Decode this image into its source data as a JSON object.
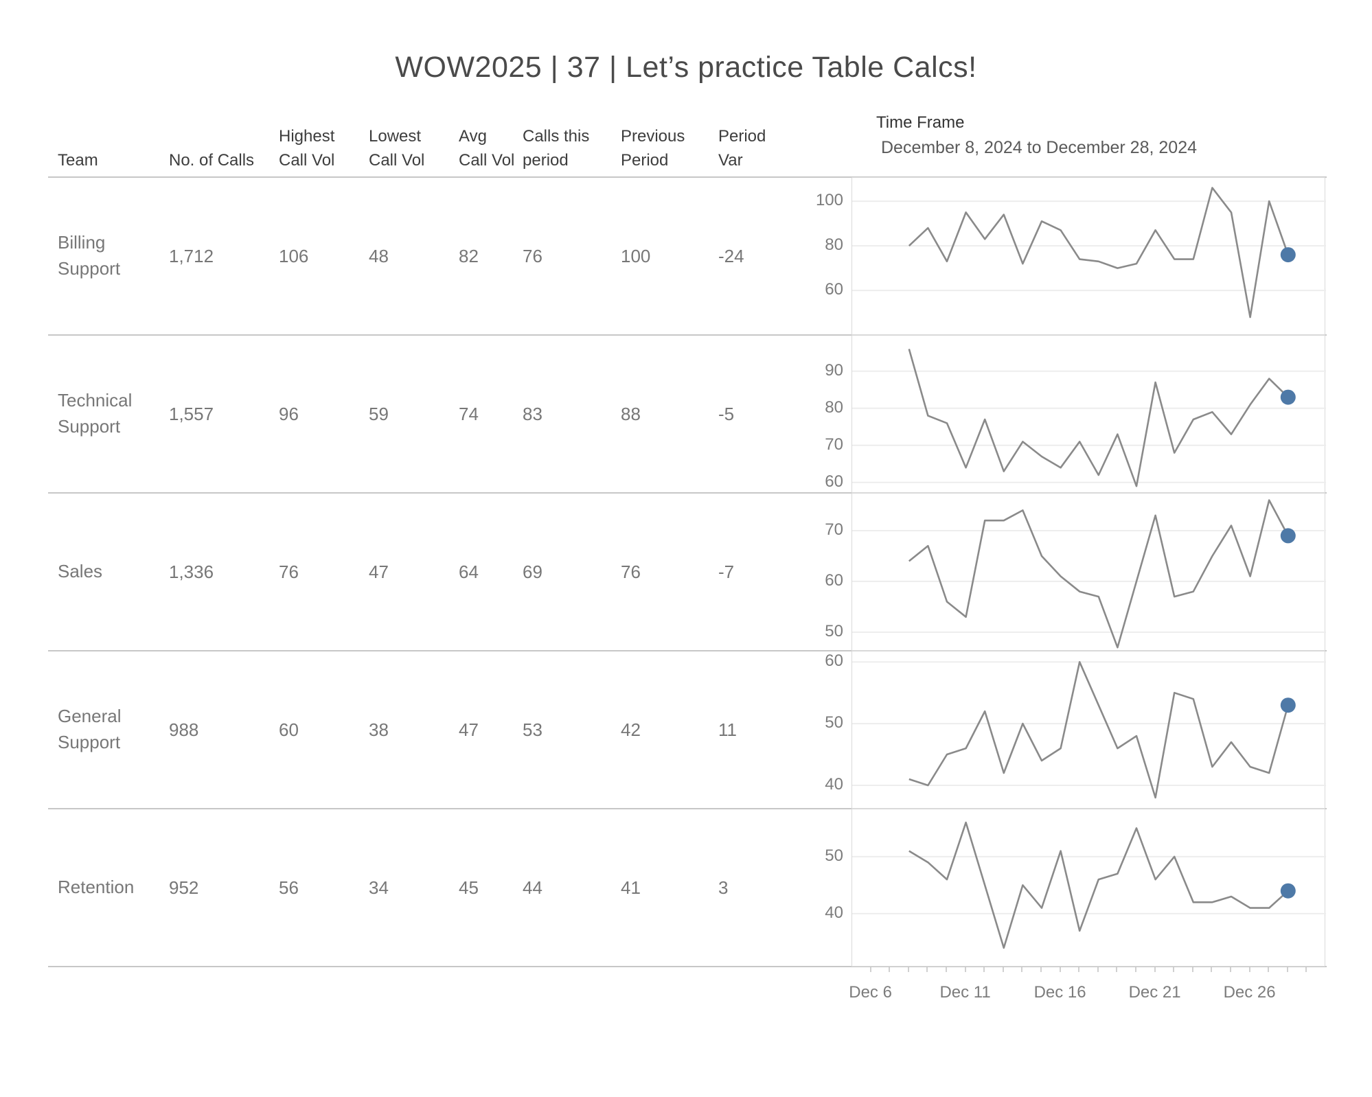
{
  "title": "WOW2025 | 37 | Let’s practice Table Calcs!",
  "time_frame": {
    "label": "Time Frame",
    "range": "December 8, 2024 to December 28, 2024"
  },
  "colors": {
    "line": "#8a8a8a",
    "current_dot": "#4e79a7",
    "gridline": "#ededed",
    "panel_border": "#d9d9d9",
    "separator": "#c7c7c7",
    "value_text": "#777777",
    "header_text": "#3d3d3d",
    "axis_text": "#7c7c7c"
  },
  "table": {
    "columns": [
      {
        "label": "Team"
      },
      {
        "label": "No. of Calls"
      },
      {
        "label": "Highest\nCall Vol"
      },
      {
        "label": "Lowest\nCall Vol"
      },
      {
        "label": "Avg\nCall Vol"
      },
      {
        "label": "Calls this\nperiod"
      },
      {
        "label": "Previous\nPeriod"
      },
      {
        "label": "Period\nVar"
      }
    ],
    "rows": [
      {
        "team": "Billing Support",
        "no_of_calls": "1,712",
        "highest": "106",
        "lowest": "48",
        "avg": "82",
        "calls_this_period": "76",
        "previous_period": "100",
        "period_var": "-24"
      },
      {
        "team": "Technical Support",
        "no_of_calls": "1,557",
        "highest": "96",
        "lowest": "59",
        "avg": "74",
        "calls_this_period": "83",
        "previous_period": "88",
        "period_var": "-5"
      },
      {
        "team": "Sales",
        "no_of_calls": "1,336",
        "highest": "76",
        "lowest": "47",
        "avg": "64",
        "calls_this_period": "69",
        "previous_period": "76",
        "period_var": "-7"
      },
      {
        "team": "General Support",
        "no_of_calls": "988",
        "highest": "60",
        "lowest": "38",
        "avg": "47",
        "calls_this_period": "53",
        "previous_period": "42",
        "period_var": "11"
      },
      {
        "team": "Retention",
        "no_of_calls": "952",
        "highest": "56",
        "lowest": "34",
        "avg": "45",
        "calls_this_period": "44",
        "previous_period": "41",
        "period_var": "3"
      }
    ]
  },
  "x_axis": {
    "unit": "Day of December 2024",
    "domain_days": [
      5,
      30
    ],
    "minor_tick_days": [
      6,
      7,
      8,
      9,
      10,
      11,
      12,
      13,
      14,
      15,
      16,
      17,
      18,
      19,
      20,
      21,
      22,
      23,
      24,
      25,
      26,
      27,
      28,
      29
    ],
    "labeled_ticks": [
      {
        "day": 6,
        "label": "Dec 6"
      },
      {
        "day": 11,
        "label": "Dec 11"
      },
      {
        "day": 16,
        "label": "Dec 16"
      },
      {
        "day": 21,
        "label": "Dec 21"
      },
      {
        "day": 26,
        "label": "Dec 26"
      }
    ]
  },
  "chart_data": [
    {
      "type": "line",
      "team": "Billing Support",
      "x_days": [
        8,
        9,
        10,
        11,
        12,
        13,
        14,
        15,
        16,
        17,
        18,
        19,
        20,
        21,
        22,
        23,
        24,
        25,
        26,
        27,
        28
      ],
      "values": [
        80,
        88,
        73,
        95,
        83,
        94,
        72,
        91,
        87,
        74,
        73,
        70,
        72,
        87,
        74,
        74,
        106,
        95,
        48,
        100,
        76
      ],
      "yticks": [
        60,
        80,
        100
      ],
      "ylim": [
        39.7,
        110.5
      ],
      "highlight_last_value": 76
    },
    {
      "type": "line",
      "team": "Technical Support",
      "x_days": [
        8,
        9,
        10,
        11,
        12,
        13,
        14,
        15,
        16,
        17,
        18,
        19,
        20,
        21,
        22,
        23,
        24,
        25,
        26,
        27,
        28
      ],
      "values": [
        96,
        78,
        76,
        64,
        77,
        63,
        71,
        67,
        64,
        71,
        62,
        73,
        59,
        87,
        68,
        77,
        79,
        73,
        81,
        88,
        83
      ],
      "yticks": [
        60,
        70,
        80,
        90
      ],
      "ylim": [
        57.0,
        99.6
      ],
      "highlight_last_value": 83
    },
    {
      "type": "line",
      "team": "Sales",
      "x_days": [
        8,
        9,
        10,
        11,
        12,
        13,
        14,
        15,
        16,
        17,
        18,
        19,
        20,
        21,
        22,
        23,
        24,
        25,
        26,
        27,
        28
      ],
      "values": [
        64,
        67,
        56,
        53,
        72,
        72,
        74,
        65,
        61,
        58,
        57,
        47,
        60,
        73,
        57,
        58,
        65,
        71,
        61,
        76,
        69
      ],
      "yticks": [
        50,
        60,
        70
      ],
      "ylim": [
        46.2,
        77.3
      ],
      "highlight_last_value": 69
    },
    {
      "type": "line",
      "team": "General Support",
      "x_days": [
        8,
        9,
        10,
        11,
        12,
        13,
        14,
        15,
        16,
        17,
        18,
        19,
        20,
        21,
        22,
        23,
        24,
        25,
        26,
        27,
        28
      ],
      "values": [
        41,
        40,
        45,
        46,
        52,
        42,
        50,
        44,
        46,
        60,
        53,
        46,
        48,
        38,
        55,
        54,
        43,
        47,
        43,
        42,
        53
      ],
      "yticks": [
        40,
        50,
        60
      ],
      "ylim": [
        36.1,
        61.7
      ],
      "highlight_last_value": 53
    },
    {
      "type": "line",
      "team": "Retention",
      "x_days": [
        8,
        9,
        10,
        11,
        12,
        13,
        14,
        15,
        16,
        17,
        18,
        19,
        20,
        21,
        22,
        23,
        24,
        25,
        26,
        27,
        28
      ],
      "values": [
        51,
        49,
        46,
        56,
        45,
        34,
        45,
        41,
        51,
        37,
        46,
        47,
        55,
        46,
        50,
        42,
        42,
        43,
        41,
        41,
        44
      ],
      "yticks": [
        40,
        50
      ],
      "ylim": [
        30.6,
        58.3
      ],
      "highlight_last_value": 44
    }
  ]
}
